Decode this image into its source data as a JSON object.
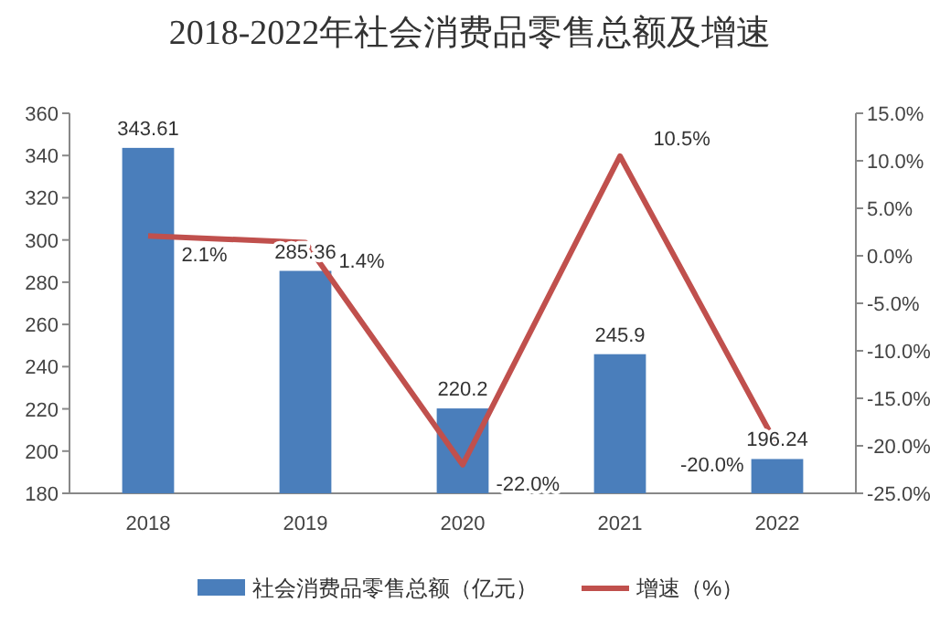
{
  "chart_data": {
    "type": "bar",
    "title": "2018-2022年社会消费品零售总额及增速",
    "categories": [
      "2018",
      "2019",
      "2020",
      "2021",
      "2022"
    ],
    "series": [
      {
        "name": "社会消费品零售总额（亿元）",
        "color": "#4a7ebb",
        "values": [
          343.61,
          285.36,
          220.2,
          245.9,
          196.24
        ],
        "value_labels": [
          "343.61",
          "285.36",
          "220.2",
          "245.9",
          "196.24"
        ]
      },
      {
        "name": "增速（%）",
        "type": "line",
        "axis": "y2",
        "color": "#c0504d",
        "values": [
          2.1,
          1.4,
          -22.0,
          10.5,
          -20.0
        ],
        "value_labels": [
          "2.1%",
          "1.4%",
          "-22.0%",
          "10.5%",
          "-20.0%"
        ]
      }
    ],
    "ylim": [
      180,
      360
    ],
    "yticks": [
      180,
      200,
      220,
      240,
      260,
      280,
      300,
      320,
      340,
      360
    ],
    "y2lim": [
      -25,
      15
    ],
    "y2ticks": [
      {
        "value": -25,
        "label": "-25.0%"
      },
      {
        "value": -20,
        "label": "-20.0%"
      },
      {
        "value": -15,
        "label": "-15.0%"
      },
      {
        "value": -10,
        "label": "-10.0%"
      },
      {
        "value": -5,
        "label": "-5.0%"
      },
      {
        "value": 0,
        "label": "0.0%"
      },
      {
        "value": 5,
        "label": "5.0%"
      },
      {
        "value": 10,
        "label": "10.0%"
      },
      {
        "value": 15,
        "label": "15.0%"
      }
    ],
    "legend": "bottom"
  }
}
